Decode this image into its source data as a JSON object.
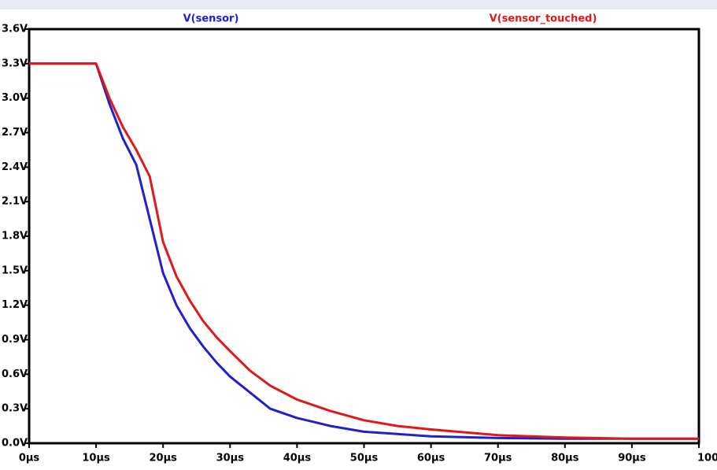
{
  "chart_data": {
    "type": "line",
    "x": [
      0,
      10,
      12,
      14,
      16,
      18,
      20,
      22,
      24,
      26,
      28,
      30,
      33,
      36,
      40,
      45,
      50,
      55,
      60,
      70,
      80,
      90,
      100
    ],
    "series": [
      {
        "name": "V(sensor)",
        "color": "#2020d0",
        "values": [
          3.3,
          3.3,
          2.95,
          2.65,
          2.42,
          1.95,
          1.48,
          1.2,
          1.0,
          0.84,
          0.7,
          0.58,
          0.44,
          0.3,
          0.22,
          0.15,
          0.1,
          0.08,
          0.06,
          0.045,
          0.04,
          0.04,
          0.04
        ]
      },
      {
        "name": "V(sensor_touched)",
        "color": "#e01818",
        "values": [
          3.3,
          3.3,
          3.0,
          2.75,
          2.55,
          2.32,
          1.75,
          1.45,
          1.24,
          1.06,
          0.92,
          0.8,
          0.63,
          0.5,
          0.38,
          0.28,
          0.2,
          0.15,
          0.12,
          0.07,
          0.05,
          0.04,
          0.04
        ]
      }
    ],
    "xlim": [
      0,
      100
    ],
    "xticks": [
      {
        "value": 0,
        "label": "0µs"
      },
      {
        "value": 10,
        "label": "10µs"
      },
      {
        "value": 20,
        "label": "20µs"
      },
      {
        "value": 30,
        "label": "30µs"
      },
      {
        "value": 40,
        "label": "40µs"
      },
      {
        "value": 50,
        "label": "50µs"
      },
      {
        "value": 60,
        "label": "60µs"
      },
      {
        "value": 70,
        "label": "70µs"
      },
      {
        "value": 80,
        "label": "80µs"
      },
      {
        "value": 90,
        "label": "90µs"
      },
      {
        "value": 100,
        "label": "100µs"
      }
    ],
    "ylim": [
      0,
      3.6
    ],
    "yticks": [
      {
        "value": 0,
        "label": "0.0V"
      },
      {
        "value": 0.3,
        "label": "0.3V"
      },
      {
        "value": 0.6,
        "label": "0.6V"
      },
      {
        "value": 0.9,
        "label": "0.9V"
      },
      {
        "value": 1.2,
        "label": "1.2V"
      },
      {
        "value": 1.5,
        "label": "1.5V"
      },
      {
        "value": 1.8,
        "label": "1.8V"
      },
      {
        "value": 2.1,
        "label": "2.1V"
      },
      {
        "value": 2.4,
        "label": "2.4V"
      },
      {
        "value": 2.7,
        "label": "2.7V"
      },
      {
        "value": 3.0,
        "label": "3.0V"
      },
      {
        "value": 3.3,
        "label": "3.3V"
      },
      {
        "value": 3.6,
        "label": "3.6V"
      }
    ]
  }
}
